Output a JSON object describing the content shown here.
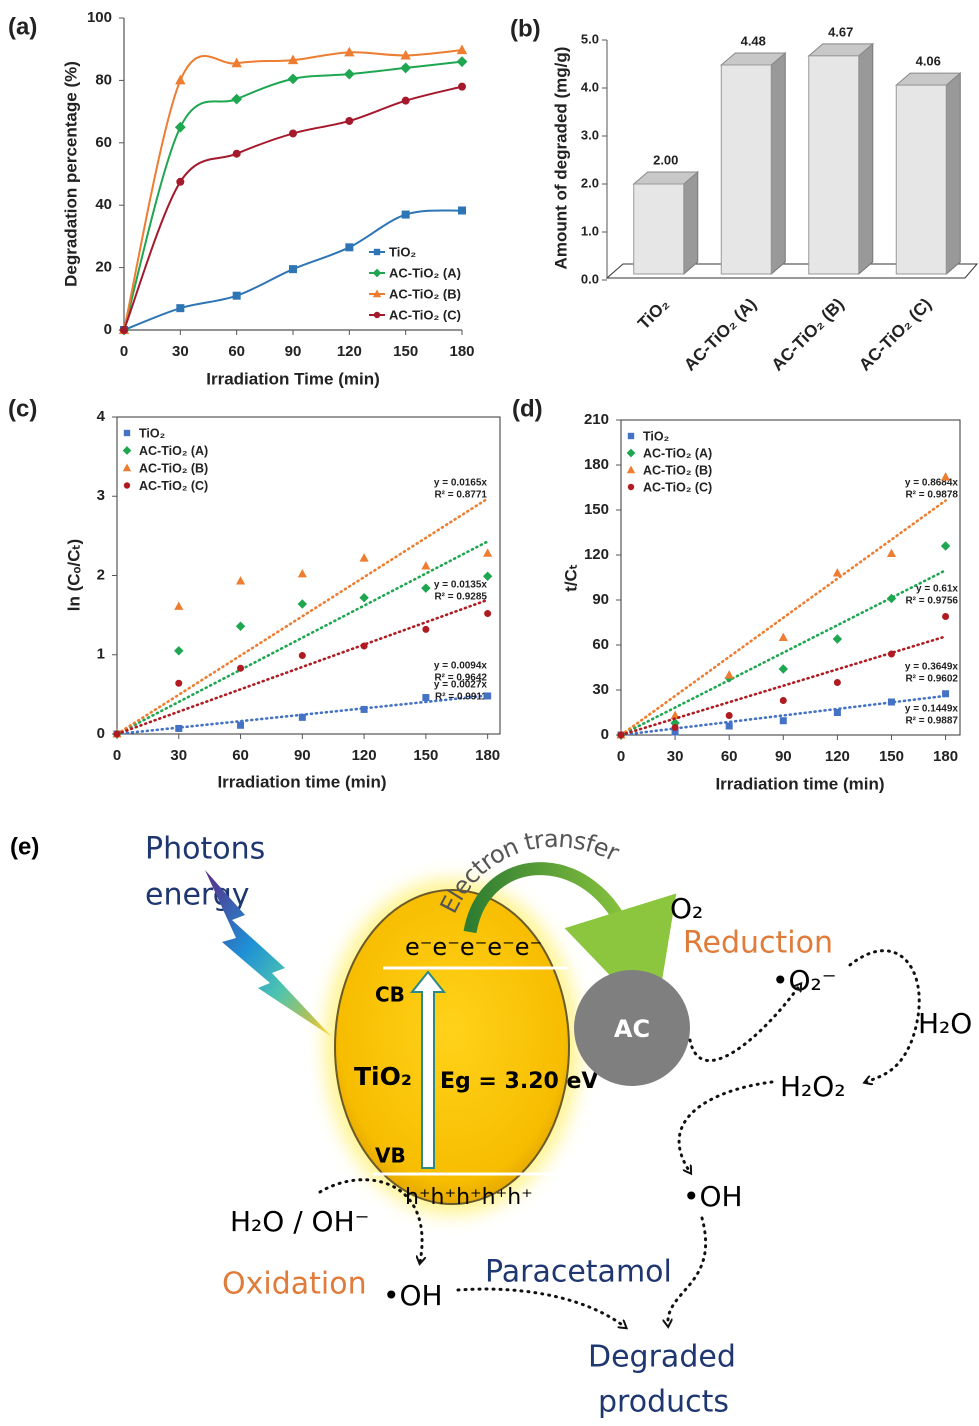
{
  "chart_data": [
    {
      "type": "line",
      "label": "(a)",
      "xlabel": "Irradiation Time (min)",
      "ylabel": "Degradation percentage (%)",
      "x": [
        0,
        30,
        60,
        90,
        120,
        150,
        180
      ],
      "xlim": [
        0,
        180
      ],
      "xticks": [
        0,
        30,
        60,
        90,
        120,
        150,
        180
      ],
      "ylim": [
        0,
        100
      ],
      "yticks": [
        0,
        20,
        40,
        60,
        80,
        100
      ],
      "legend": "lower right",
      "frame": false,
      "series": [
        {
          "name": "TiO₂",
          "color": "#2e75b6",
          "marker": "square",
          "values": [
            0,
            7,
            11,
            19.5,
            26.5,
            37,
            38.3
          ]
        },
        {
          "name": "AC-TiO₂ (A)",
          "color": "#1ea650",
          "marker": "diamond",
          "values": [
            0,
            65,
            74,
            80.5,
            82,
            84,
            86
          ]
        },
        {
          "name": "AC-TiO₂ (B)",
          "color": "#ed7d31",
          "marker": "triangle",
          "values": [
            0,
            80,
            85.5,
            86.5,
            89,
            88,
            89.7
          ]
        },
        {
          "name": "AC-TiO₂ (C)",
          "color": "#a5192c",
          "marker": "circle",
          "values": [
            0,
            47.5,
            56.5,
            63,
            67,
            73.5,
            78
          ]
        }
      ]
    },
    {
      "type": "bar",
      "label": "(b)",
      "ylabel": "Amount of degraded (mg/g)",
      "categories": [
        "TiO₂",
        "AC-TiO₂ (A)",
        "AC-TiO₂ (B)",
        "AC-TiO₂ (C)"
      ],
      "values": [
        2.0,
        4.48,
        4.67,
        4.06
      ],
      "value_labels": [
        "2.00",
        "4.48",
        "4.67",
        "4.06"
      ],
      "color": "#e6e6e6",
      "ylim": [
        0,
        5
      ],
      "yticks": [
        {
          "value": 0,
          "label": "0.0"
        },
        {
          "value": 1,
          "label": "1.0"
        },
        {
          "value": 2,
          "label": "2.0"
        },
        {
          "value": 3,
          "label": "3.0"
        },
        {
          "value": 4,
          "label": "4.0"
        },
        {
          "value": 5,
          "label": "5.0"
        }
      ]
    },
    {
      "type": "scatter",
      "label": "(c)",
      "xlabel": "Irradiation time (min)",
      "ylabel": "ln (Cₒ/Cₜ)",
      "x": [
        0,
        30,
        60,
        90,
        120,
        150,
        180
      ],
      "xlim": [
        0,
        186
      ],
      "xticks": [
        0,
        30,
        60,
        90,
        120,
        150,
        180
      ],
      "ylim": [
        0,
        4
      ],
      "yticks": [
        0,
        1,
        2,
        3,
        4
      ],
      "legend": "upper left",
      "frame": true,
      "series": [
        {
          "name": "TiO₂",
          "color": "#4472c4",
          "marker": "square",
          "values": [
            0,
            0.07,
            0.11,
            0.21,
            0.31,
            0.46,
            0.48
          ],
          "trendline": {
            "slope": 0.0027,
            "equation": "y = 0.0027x",
            "r2": "R² = 0.9911"
          }
        },
        {
          "name": "AC-TiO₂ (A)",
          "color": "#1ea650",
          "marker": "diamond",
          "values": [
            0,
            1.05,
            1.36,
            1.64,
            1.72,
            1.84,
            1.99
          ],
          "trendline": {
            "slope": 0.0135,
            "equation": "y = 0.0135x",
            "r2": "R² = 0.9285"
          }
        },
        {
          "name": "AC-TiO₂ (B)",
          "color": "#ed7d31",
          "marker": "triangle",
          "values": [
            0,
            1.61,
            1.93,
            2.02,
            2.22,
            2.12,
            2.28
          ],
          "trendline": {
            "slope": 0.0165,
            "equation": "y = 0.0165x",
            "r2": "R² = 0.8771"
          }
        },
        {
          "name": "AC-TiO₂ (C)",
          "color": "#b01b22",
          "marker": "circle",
          "values": [
            0,
            0.64,
            0.83,
            0.99,
            1.11,
            1.32,
            1.52
          ],
          "trendline": {
            "slope": 0.0094,
            "equation": "y = 0.0094x",
            "r2": "R² = 0.9642"
          }
        }
      ]
    },
    {
      "type": "scatter",
      "label": "(d)",
      "xlabel": "Irradiation time (min)",
      "ylabel": "t/Cₜ",
      "x": [
        0,
        30,
        60,
        90,
        120,
        150,
        180
      ],
      "xlim": [
        0,
        188
      ],
      "xticks": [
        0,
        30,
        60,
        90,
        120,
        150,
        180
      ],
      "ylim": [
        0,
        210
      ],
      "yticks": [
        0,
        30,
        60,
        90,
        120,
        150,
        180,
        210
      ],
      "legend": "upper left",
      "frame": true,
      "series": [
        {
          "name": "TiO₂",
          "color": "#4472c4",
          "marker": "square",
          "values": [
            0,
            2,
            6,
            9.5,
            15,
            22,
            27.5
          ],
          "trendline": {
            "slope": 0.1449,
            "equation": "y = 0.1449x",
            "r2": "R² = 0.9887"
          }
        },
        {
          "name": "AC-TiO₂ (A)",
          "color": "#1ea650",
          "marker": "diamond",
          "values": [
            0,
            8,
            38,
            44,
            64,
            91,
            126
          ],
          "trendline": {
            "slope": 0.61,
            "equation": "y = 0.61x",
            "r2": "R² = 0.9756"
          }
        },
        {
          "name": "AC-TiO₂ (B)",
          "color": "#ed7d31",
          "marker": "triangle",
          "values": [
            0,
            13,
            40,
            65,
            108,
            121,
            172
          ],
          "trendline": {
            "slope": 0.8684,
            "equation": "y = 0.8684x",
            "r2": "R² = 0.9878"
          }
        },
        {
          "name": "AC-TiO₂ (C)",
          "color": "#b01b22",
          "marker": "circle",
          "values": [
            0,
            5,
            13,
            23,
            35,
            54,
            79
          ],
          "trendline": {
            "slope": 0.3649,
            "equation": "y = 0.3649x",
            "r2": "R² = 0.9602"
          }
        }
      ]
    }
  ],
  "diagram": {
    "label": "(e)",
    "photons": [
      "Photons",
      "energy"
    ],
    "electron_transfer": "Electron transfer",
    "o2": "O₂",
    "reduction": "Reduction",
    "superoxide": "•O₂⁻",
    "h2o": "H₂O",
    "h2o2": "H₂O₂",
    "oh_right": "•OH",
    "ac": "AC",
    "cb": "CB",
    "vb": "VB",
    "tio2": "TiO₂",
    "eg": "Eg = 3.20 eV",
    "electrons": "e⁻e⁻e⁻e⁻e⁻",
    "holes": "h⁺h⁺h⁺h⁺h⁺",
    "h2o_oh": "H₂O / OH⁻",
    "oxidation": "Oxidation",
    "oh_left": "•OH",
    "paracetamol": "Paracetamol",
    "products": [
      "Degraded",
      "products"
    ]
  }
}
